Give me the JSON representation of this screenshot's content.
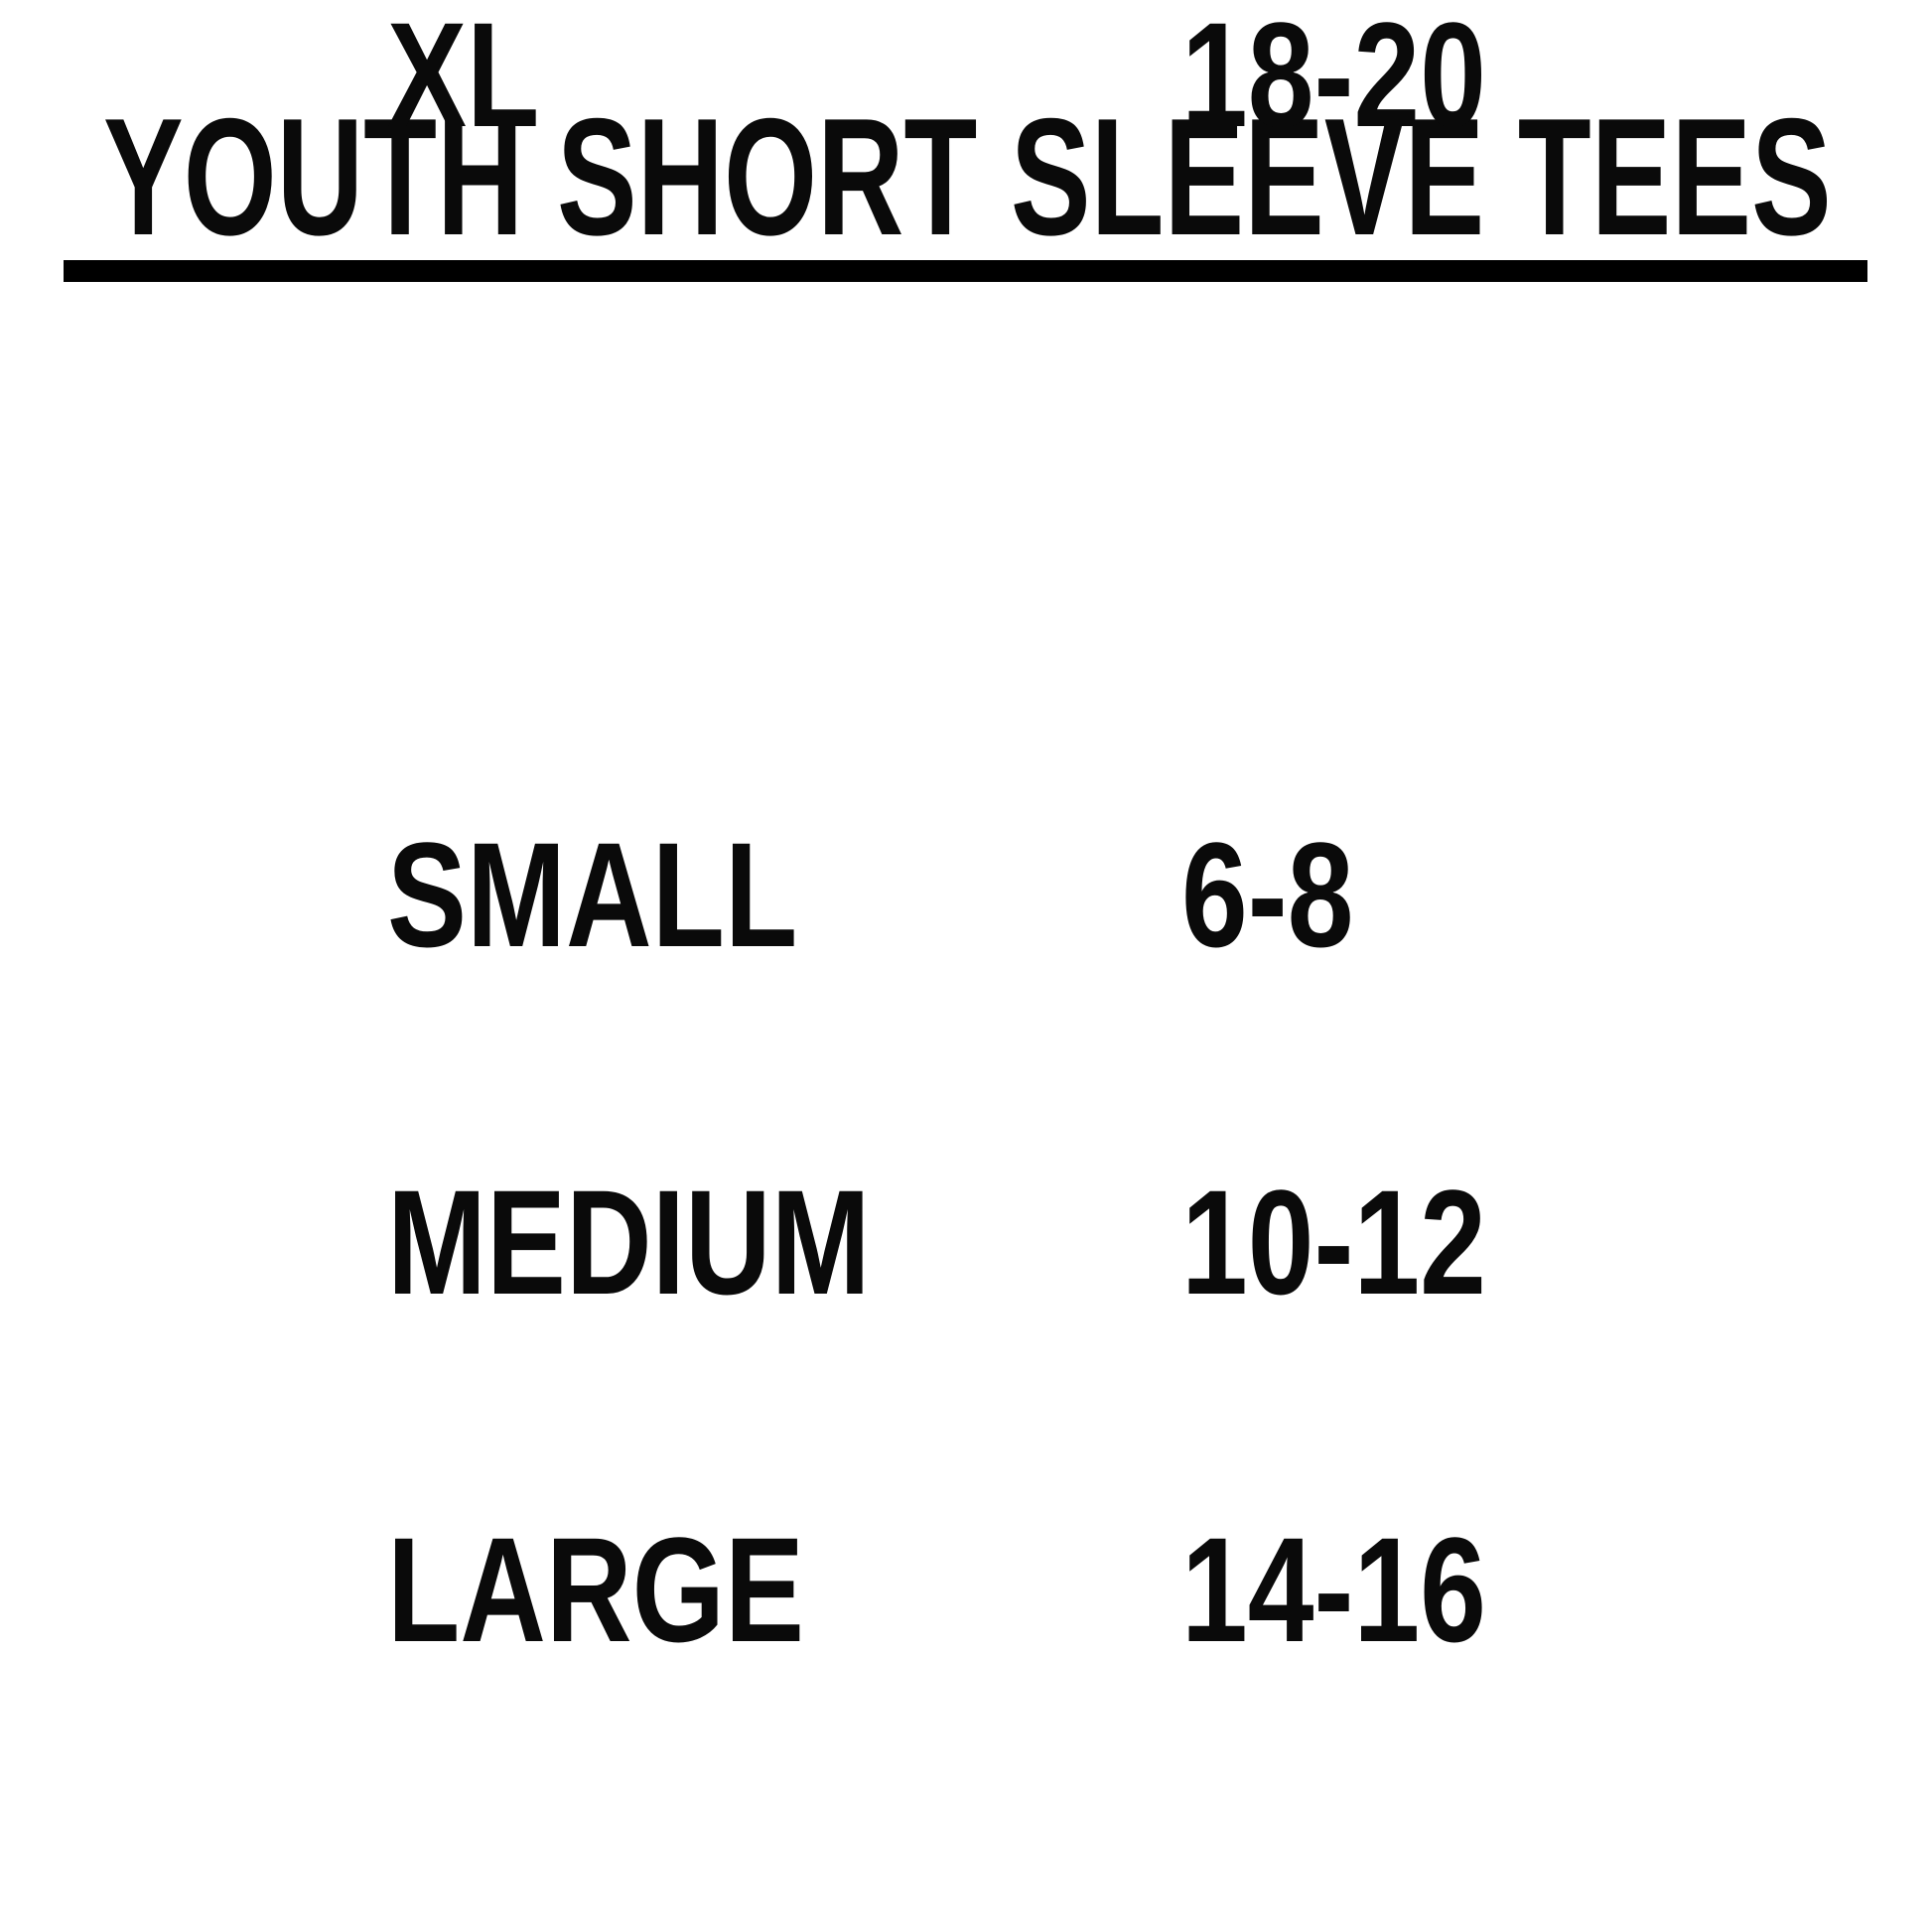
{
  "page": {
    "title": "YOUTH SHORT SLEEVE TEES",
    "background_color": "#ffffff",
    "text_color": "#0a0a0a",
    "divider_color": "#000000"
  },
  "size_chart": {
    "rows": [
      {
        "size": "SMALL",
        "age_range": "6-8"
      },
      {
        "size": "MEDIUM",
        "age_range": "10-12"
      },
      {
        "size": "LARGE",
        "age_range": "14-16"
      },
      {
        "size": "XL",
        "age_range": "18-20"
      }
    ]
  }
}
